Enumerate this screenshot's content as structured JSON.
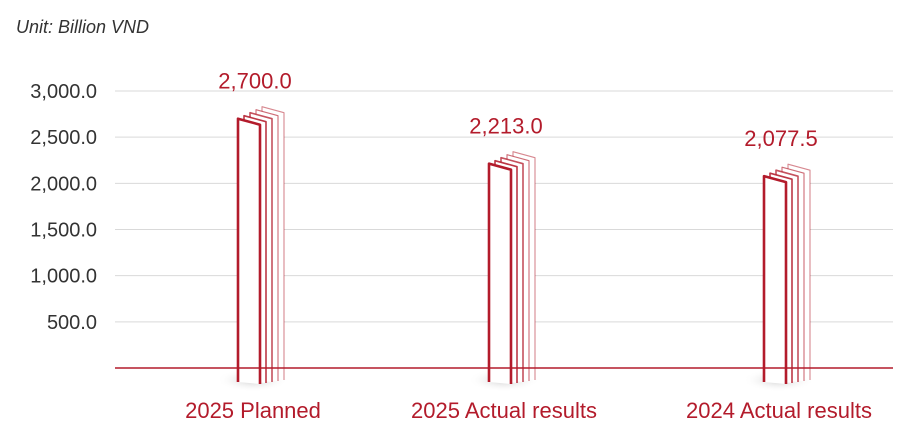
{
  "chart_data": {
    "type": "bar",
    "unit_label": "Unit: Billion VND",
    "categories": [
      "2025 Planned",
      "2025 Actual results",
      "2024 Actual results"
    ],
    "values": [
      2700.0,
      2213.0,
      2077.5
    ],
    "value_labels": [
      "2,700.0",
      "2,213.0",
      "2,077.5"
    ],
    "yticks": [
      500.0,
      1000.0,
      1500.0,
      2000.0,
      2500.0,
      3000.0
    ],
    "ytick_labels": [
      "500.0",
      "1,000.0",
      "1,500.0",
      "2,000.0",
      "2,500.0",
      "3,000.0"
    ],
    "ylim": [
      0,
      3000
    ],
    "grid": true,
    "accent_color": "#b31b2b",
    "grid_color": "#d9d9d9",
    "text_color": "#333333"
  }
}
